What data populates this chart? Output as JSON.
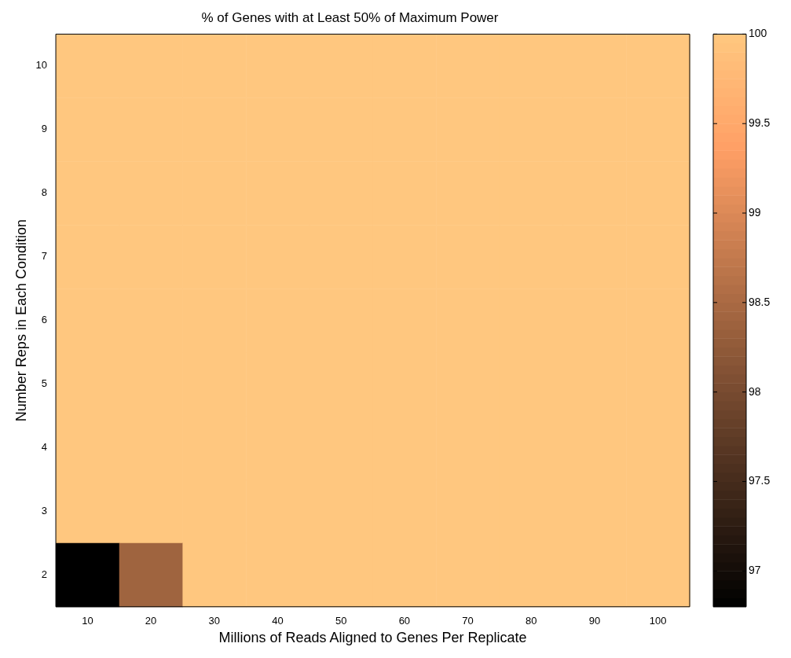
{
  "chart_data": {
    "type": "heatmap",
    "title": "% of Genes with at Least 50% of Maximum Power",
    "xlabel": "Millions of Reads Aligned to Genes Per Replicate",
    "ylabel": "Number Reps in Each Condition",
    "categories": [
      "10",
      "20",
      "30",
      "40",
      "50",
      "60",
      "70",
      "80",
      "90",
      "100"
    ],
    "y_categories": [
      "10",
      "9",
      "8",
      "7",
      "6",
      "5",
      "4",
      "3",
      "2"
    ],
    "cells": [
      [
        100,
        100,
        100,
        100,
        100,
        100,
        100,
        100,
        100,
        100
      ],
      [
        100,
        100,
        100,
        100,
        100,
        100,
        100,
        100,
        100,
        100
      ],
      [
        100,
        100,
        100,
        100,
        100,
        100,
        100,
        100,
        100,
        100
      ],
      [
        100,
        100,
        100,
        100,
        100,
        100,
        100,
        100,
        100,
        100
      ],
      [
        100,
        100,
        100,
        100,
        100,
        100,
        100,
        100,
        100,
        100
      ],
      [
        100,
        100,
        100,
        100,
        100,
        100,
        100,
        100,
        100,
        100
      ],
      [
        100,
        100,
        100,
        100,
        100,
        100,
        100,
        100,
        100,
        100
      ],
      [
        100,
        100,
        100,
        100,
        100,
        100,
        100,
        100,
        100,
        100
      ],
      [
        96.8,
        98.4,
        100,
        100,
        100,
        100,
        100,
        100,
        100,
        100
      ]
    ],
    "clim": [
      96.8,
      100
    ],
    "cticks": [
      97,
      97.5,
      98,
      98.5,
      99,
      99.5,
      100
    ]
  }
}
